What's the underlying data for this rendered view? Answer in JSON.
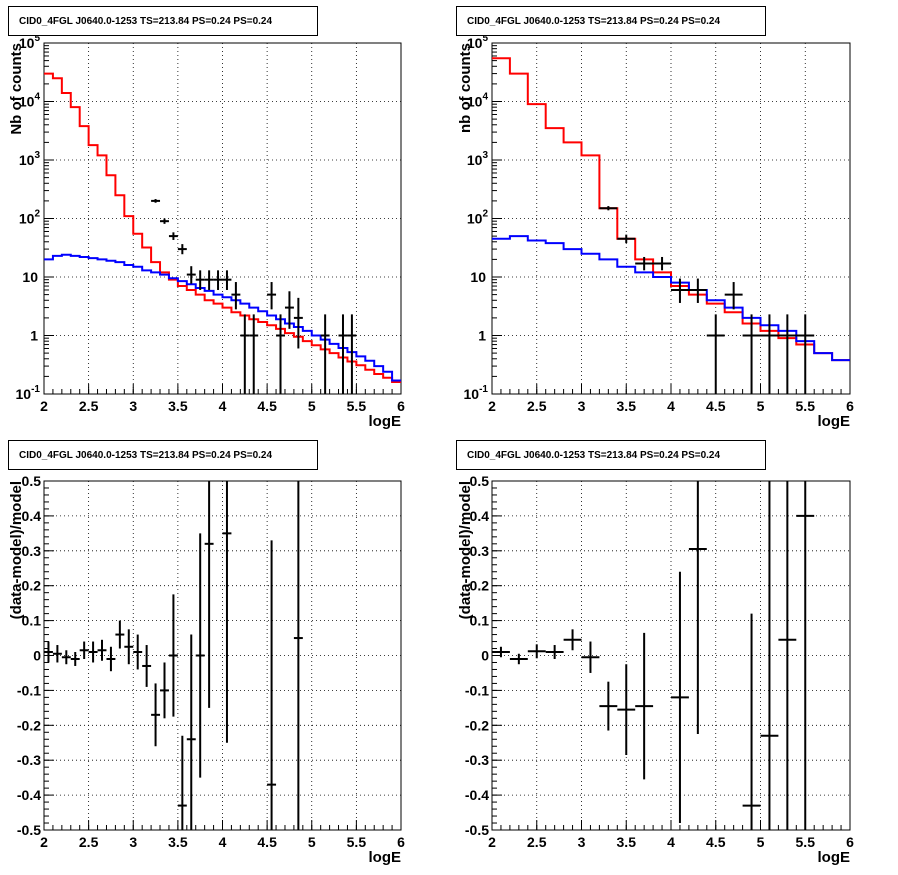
{
  "chart_data": [
    {
      "type": "line",
      "title": "CID0_4FGL J0640.0-1253 TS=213.84 PS=0.24 PS=0.24",
      "xlabel": "logE",
      "ylabel": "Nb of counts",
      "xlim": [
        2,
        6
      ],
      "ylim": [
        0.1,
        100000
      ],
      "log_y": true,
      "grid": true,
      "x_ticks": [
        "2",
        "2.5",
        "3",
        "3.5",
        "4",
        "4.5",
        "5",
        "5.5",
        "6"
      ],
      "y_ticks": [
        "10^-1",
        "1",
        "10",
        "10^2",
        "10^3",
        "10^4",
        "10^5"
      ],
      "bin_edges": [
        2.0,
        2.1,
        2.2,
        2.3,
        2.4,
        2.5,
        2.6,
        2.7,
        2.8,
        2.9,
        3.0,
        3.1,
        3.2,
        3.3,
        3.4,
        3.5,
        3.6,
        3.7,
        3.8,
        3.9,
        4.0,
        4.1,
        4.2,
        4.3,
        4.4,
        4.5,
        4.6,
        4.7,
        4.8,
        4.9,
        5.0,
        5.1,
        5.2,
        5.3,
        5.4,
        5.5,
        5.6,
        5.7,
        5.8,
        5.9,
        6.0
      ],
      "series": [
        {
          "name": "",
          "color": "#ff0000",
          "style": "hist",
          "values": [
            30000,
            25000,
            14000,
            8000,
            3800,
            1800,
            1200,
            550,
            250,
            110,
            55,
            32,
            18,
            12,
            9,
            7,
            6,
            5,
            4,
            3.5,
            3,
            2.5,
            2.2,
            1.9,
            1.7,
            1.5,
            1.3,
            1.1,
            0.95,
            0.8,
            0.68,
            0.58,
            0.5,
            0.42,
            0.36,
            0.31,
            0.26,
            0.22,
            0.19,
            0.16
          ]
        },
        {
          "name": "",
          "color": "#0000ff",
          "style": "hist",
          "values": [
            20,
            23,
            24,
            23,
            22,
            21,
            20,
            19,
            18,
            16,
            15,
            13,
            12,
            11,
            9.5,
            8.5,
            7.5,
            6.5,
            5.8,
            5,
            4.5,
            4,
            3.5,
            3,
            2.6,
            2.2,
            1.9,
            1.6,
            1.4,
            1.2,
            1.0,
            0.85,
            0.72,
            0.61,
            0.52,
            0.44,
            0.37,
            0.3,
            0.24,
            0.17
          ]
        },
        {
          "name": "",
          "color": "#000000",
          "style": "points",
          "x": [
            3.25,
            3.35,
            3.45,
            3.55,
            3.65,
            3.75,
            3.85,
            3.95,
            4.05,
            4.15,
            4.25,
            4.35,
            4.55,
            4.65,
            4.75,
            4.85,
            5.15,
            5.35,
            5.45
          ],
          "values": [
            200,
            90,
            50,
            30,
            11,
            9,
            9,
            9,
            9,
            5,
            1,
            1,
            5,
            1,
            3,
            2,
            1,
            1,
            1
          ],
          "err_lo": [
            14,
            9,
            7,
            5.5,
            3.3,
            3,
            3,
            3,
            3,
            2.2,
            0.9,
            0.9,
            2.2,
            0.9,
            1.7,
            1.4,
            0.9,
            0.9,
            0.9
          ],
          "err_hi": [
            15,
            10,
            8,
            6.5,
            4.3,
            4,
            4,
            4,
            4,
            3.2,
            1.3,
            1.3,
            3.2,
            1.3,
            2.7,
            2.4,
            1.3,
            1.3,
            1.3
          ]
        }
      ]
    },
    {
      "type": "line",
      "title": "CID0_4FGL J0640.0-1253 TS=213.84 PS=0.24 PS=0.24",
      "xlabel": "logE",
      "ylabel": "nb of counts",
      "xlim": [
        2,
        6
      ],
      "ylim": [
        0.1,
        100000
      ],
      "log_y": true,
      "grid": true,
      "x_ticks": [
        "2",
        "2.5",
        "3",
        "3.5",
        "4",
        "4.5",
        "5",
        "5.5",
        "6"
      ],
      "y_ticks": [
        "10^-1",
        "1",
        "10",
        "10^2",
        "10^3",
        "10^4",
        "10^5"
      ],
      "bin_edges": [
        2.0,
        2.2,
        2.4,
        2.6,
        2.8,
        3.0,
        3.2,
        3.4,
        3.6,
        3.8,
        4.0,
        4.2,
        4.4,
        4.6,
        4.8,
        5.0,
        5.2,
        5.4,
        5.6,
        5.8,
        6.0
      ],
      "series": [
        {
          "name": "",
          "color": "#ff0000",
          "style": "hist",
          "values": [
            55000,
            30000,
            9000,
            3500,
            2000,
            1200,
            150,
            45,
            20,
            12,
            7,
            5,
            3.5,
            2.5,
            1.6,
            1.2,
            0.9,
            0.7,
            0.5,
            0.38
          ]
        },
        {
          "name": "",
          "color": "#0000ff",
          "style": "hist",
          "values": [
            45,
            50,
            42,
            38,
            30,
            25,
            20,
            15,
            12,
            10,
            8,
            6,
            4,
            3,
            2,
            1.5,
            1.2,
            0.8,
            0.5,
            0.38
          ]
        },
        {
          "name": "",
          "color": "#000000",
          "style": "points",
          "x": [
            3.3,
            3.5,
            3.7,
            3.9,
            4.1,
            4.3,
            4.5,
            4.7,
            4.9,
            5.1,
            5.3,
            5.5
          ],
          "values": [
            150,
            45,
            17,
            17,
            6,
            6,
            1,
            5,
            1,
            1,
            1,
            1
          ],
          "err_lo": [
            12,
            7,
            4,
            4,
            2.4,
            2.4,
            0.9,
            2.2,
            0.9,
            0.9,
            0.9,
            0.9
          ],
          "err_hi": [
            13,
            8,
            5,
            5,
            3.4,
            3.4,
            1.3,
            3.2,
            1.3,
            1.3,
            1.3,
            1.3
          ]
        }
      ]
    },
    {
      "type": "scatter",
      "title": "CID0_4FGL J0640.0-1253 TS=213.84 PS=0.24 PS=0.24",
      "xlabel": "logE",
      "ylabel": "(data-model)/model",
      "xlim": [
        2,
        6
      ],
      "ylim": [
        -0.5,
        0.5
      ],
      "grid": true,
      "x_ticks": [
        "2",
        "2.5",
        "3",
        "3.5",
        "4",
        "4.5",
        "5",
        "5.5",
        "6"
      ],
      "y_ticks": [
        "-0.5",
        "-0.4",
        "-0.3",
        "-0.2",
        "-0.1",
        "0",
        "0.1",
        "0.2",
        "0.3",
        "0.4",
        "0.5"
      ],
      "x": [
        2.05,
        2.15,
        2.25,
        2.35,
        2.45,
        2.55,
        2.65,
        2.75,
        2.85,
        2.95,
        3.05,
        3.15,
        3.25,
        3.35,
        3.45,
        3.55,
        3.65,
        3.75,
        3.85,
        4.05,
        4.55,
        4.85
      ],
      "values": [
        0.01,
        0.005,
        -0.005,
        -0.01,
        0.015,
        0.01,
        0.015,
        -0.01,
        0.06,
        0.025,
        0.01,
        -0.03,
        -0.17,
        -0.1,
        0.0,
        -0.43,
        -0.24,
        0.0,
        0.32,
        0.35,
        -0.37,
        0.05
      ],
      "err": [
        0.03,
        0.025,
        0.02,
        0.02,
        0.025,
        0.03,
        0.03,
        0.035,
        0.04,
        0.05,
        0.05,
        0.06,
        0.09,
        0.08,
        0.175,
        0.2,
        0.3,
        0.35,
        0.47,
        0.6,
        0.7,
        0.7
      ],
      "color": "#000000"
    },
    {
      "type": "scatter",
      "title": "CID0_4FGL J0640.0-1253 TS=213.84 PS=0.24 PS=0.24",
      "xlabel": "logE",
      "ylabel": "(data-model)/model",
      "xlim": [
        2,
        6
      ],
      "ylim": [
        -0.5,
        0.5
      ],
      "grid": true,
      "x_ticks": [
        "2",
        "2.5",
        "3",
        "3.5",
        "4",
        "4.5",
        "5",
        "5.5",
        "6"
      ],
      "y_ticks": [
        "-0.5",
        "-0.4",
        "-0.3",
        "-0.2",
        "-0.1",
        "0",
        "0.1",
        "0.2",
        "0.3",
        "0.4",
        "0.5"
      ],
      "x": [
        2.1,
        2.3,
        2.5,
        2.7,
        2.9,
        3.1,
        3.3,
        3.5,
        3.7,
        4.1,
        4.3,
        4.9,
        5.1,
        5.3,
        5.5
      ],
      "values": [
        0.01,
        -0.01,
        0.012,
        0.01,
        0.045,
        -0.005,
        -0.145,
        -0.155,
        -0.145,
        -0.12,
        0.305,
        -0.43,
        -0.23,
        0.045,
        0.4
      ],
      "err": [
        0.015,
        0.015,
        0.02,
        0.02,
        0.03,
        0.045,
        0.07,
        0.13,
        0.21,
        0.36,
        0.53,
        0.55,
        0.75,
        0.8,
        0.9
      ],
      "color": "#000000"
    }
  ]
}
